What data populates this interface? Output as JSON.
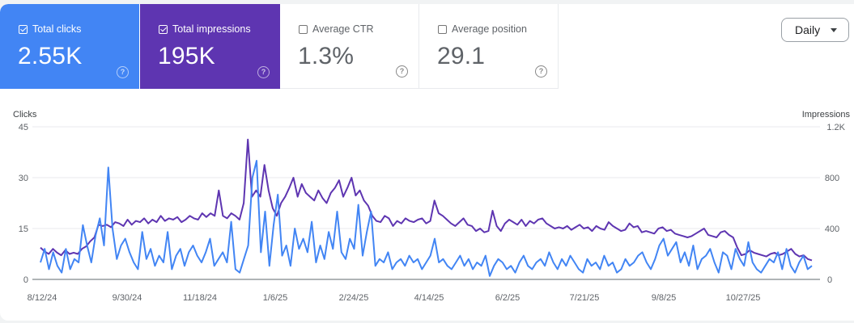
{
  "cards": [
    {
      "label": "Total clicks",
      "value": "2.55K",
      "checked": true,
      "color": "#4285f4"
    },
    {
      "label": "Total impressions",
      "value": "195K",
      "checked": true,
      "color": "#5e35b1"
    },
    {
      "label": "Average CTR",
      "value": "1.3%",
      "checked": false
    },
    {
      "label": "Average position",
      "value": "29.1",
      "checked": false
    }
  ],
  "help_glyph": "?",
  "granularity": {
    "selected": "Daily"
  },
  "chart_data": {
    "type": "line",
    "ylabel_left": "Clicks",
    "ylabel_right": "Impressions",
    "left_ticks": [
      "45",
      "30",
      "15",
      "0"
    ],
    "right_ticks": [
      "1.2K",
      "800",
      "400",
      "0"
    ],
    "ylim_left": [
      0,
      45
    ],
    "ylim_right": [
      0,
      1200
    ],
    "x_tick_labels": [
      "8/12/24",
      "9/30/24",
      "11/18/24",
      "1/6/25",
      "2/24/25",
      "4/14/25",
      "6/2/25",
      "7/21/25",
      "9/8/25",
      "10/27/25"
    ],
    "grid": true,
    "series": [
      {
        "name": "Clicks",
        "axis": "left",
        "color": "#4285f4",
        "values": [
          5,
          9,
          3,
          8,
          4,
          2,
          9,
          3,
          6,
          5,
          16,
          10,
          5,
          13,
          18,
          10,
          33,
          15,
          6,
          10,
          12,
          8,
          5,
          3,
          14,
          6,
          9,
          4,
          7,
          5,
          14,
          3,
          7,
          9,
          4,
          8,
          10,
          7,
          5,
          8,
          12,
          4,
          6,
          8,
          5,
          17,
          3,
          2,
          6,
          10,
          30,
          35,
          8,
          20,
          4,
          16,
          25,
          7,
          10,
          4,
          15,
          9,
          12,
          8,
          17,
          5,
          10,
          6,
          14,
          9,
          20,
          8,
          6,
          12,
          9,
          22,
          7,
          14,
          20,
          4,
          6,
          5,
          8,
          3,
          5,
          6,
          4,
          7,
          5,
          6,
          3,
          5,
          7,
          12,
          5,
          6,
          4,
          3,
          5,
          7,
          4,
          6,
          3,
          5,
          4,
          7,
          1,
          4,
          6,
          5,
          3,
          4,
          2,
          5,
          7,
          4,
          3,
          5,
          6,
          4,
          8,
          5,
          3,
          6,
          4,
          7,
          5,
          3,
          2,
          6,
          4,
          5,
          3,
          7,
          4,
          5,
          2,
          3,
          6,
          4,
          5,
          7,
          8,
          5,
          3,
          6,
          10,
          12,
          7,
          9,
          11,
          5,
          8,
          4,
          10,
          3,
          6,
          7,
          9,
          5,
          2,
          8,
          7,
          3,
          9,
          6,
          4,
          11,
          5,
          3,
          2,
          4,
          6,
          5,
          8,
          3,
          9,
          4,
          2,
          5,
          7,
          3,
          4
        ],
        "comment_values_sampled": ""
      },
      {
        "name": "Impressions",
        "axis": "right",
        "color": "#5e35b1",
        "values": [
          250,
          220,
          200,
          240,
          210,
          190,
          230,
          200,
          210,
          200,
          240,
          260,
          300,
          330,
          430,
          420,
          430,
          410,
          450,
          440,
          420,
          470,
          430,
          460,
          450,
          480,
          440,
          470,
          450,
          500,
          460,
          480,
          470,
          490,
          450,
          470,
          500,
          480,
          470,
          520,
          490,
          520,
          500,
          700,
          500,
          480,
          520,
          500,
          470,
          600,
          1100,
          650,
          700,
          650,
          900,
          700,
          560,
          500,
          600,
          650,
          720,
          800,
          650,
          750,
          680,
          650,
          620,
          700,
          640,
          600,
          680,
          720,
          780,
          650,
          720,
          800,
          660,
          700,
          620,
          580,
          500,
          460,
          450,
          500,
          480,
          420,
          460,
          440,
          480,
          460,
          450,
          470,
          480,
          440,
          460,
          620,
          520,
          500,
          470,
          440,
          420,
          450,
          480,
          430,
          420,
          380,
          400,
          370,
          380,
          540,
          420,
          380,
          440,
          470,
          450,
          430,
          470,
          420,
          460,
          440,
          470,
          480,
          440,
          420,
          400,
          410,
          400,
          420,
          390,
          410,
          430,
          400,
          410,
          380,
          420,
          400,
          390,
          450,
          420,
          400,
          380,
          390,
          440,
          410,
          420,
          370,
          380,
          370,
          360,
          400,
          410,
          380,
          390,
          360,
          350,
          340,
          330,
          340,
          360,
          380,
          400,
          350,
          340,
          330,
          370,
          380,
          350,
          330,
          250,
          190,
          200,
          230,
          210,
          200,
          190,
          180,
          200,
          210,
          190,
          200,
          220,
          240,
          200,
          180,
          190,
          160,
          150
        ],
        "comment_values_sampled": ""
      }
    ]
  }
}
